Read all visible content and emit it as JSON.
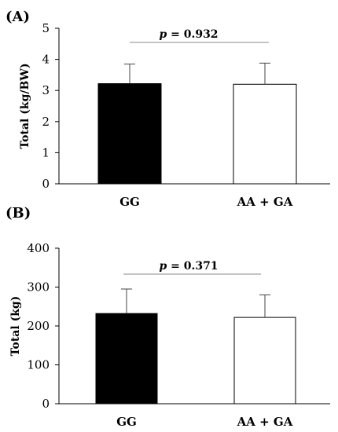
{
  "chart_data": [
    {
      "type": "bar",
      "panel_label": "(A)",
      "categories": [
        "GG",
        "AA + GA"
      ],
      "values": [
        3.22,
        3.2
      ],
      "error_upper": [
        3.85,
        3.88
      ],
      "bar_colors": [
        "#000000",
        "#ffffff"
      ],
      "ylabel": "Total (kg/BW)",
      "ylim": [
        0,
        5
      ],
      "yticks": [
        "0",
        "1",
        "2",
        "3",
        "4",
        "5"
      ],
      "annotation": {
        "p_symbol": "p",
        "text": " =  0.932"
      },
      "grid": false
    },
    {
      "type": "bar",
      "panel_label": "(B)",
      "categories": [
        "GG",
        "AA + GA"
      ],
      "values": [
        232,
        222
      ],
      "error_upper": [
        295,
        280
      ],
      "bar_colors": [
        "#000000",
        "#ffffff"
      ],
      "ylabel": "Total (kg)",
      "ylim": [
        0,
        400
      ],
      "yticks": [
        "0",
        "100",
        "200",
        "300",
        "400"
      ],
      "annotation": {
        "p_symbol": "p",
        "text": " = 0.371"
      },
      "grid": false
    }
  ]
}
